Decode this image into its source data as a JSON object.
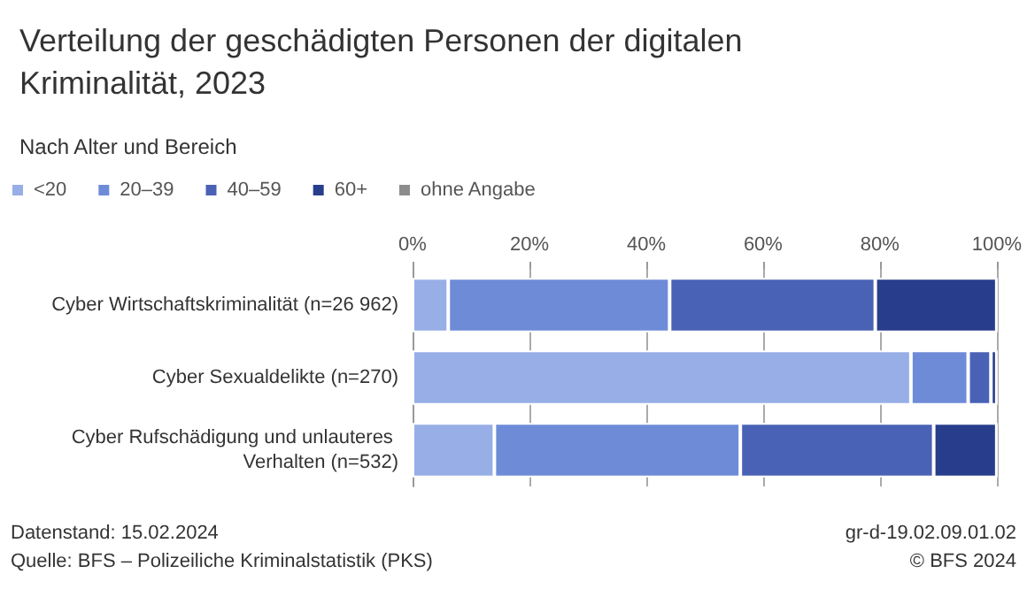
{
  "chart_data": {
    "type": "bar",
    "orientation": "horizontal",
    "stacked": true,
    "title": "Verteilung der geschädigten Personen der digitalen Kriminalität, 2023",
    "subtitle": "Nach Alter und Bereich",
    "categories": [
      "Cyber Wirtschaftskriminalität (n=26 962)",
      "Cyber Sexualdelikte (n=270)",
      "Cyber Rufschädigung und unlauteres Verhalten (n=532)"
    ],
    "series": [
      {
        "name": "<20",
        "color": "#97aee6",
        "values": [
          6.1,
          85.3,
          14.0
        ]
      },
      {
        "name": "20–39",
        "color": "#6e8bd8",
        "values": [
          37.9,
          9.8,
          42.1
        ]
      },
      {
        "name": "40–59",
        "color": "#4a62b5",
        "values": [
          35.2,
          3.9,
          33.1
        ]
      },
      {
        "name": "60+",
        "color": "#283e8c",
        "values": [
          20.8,
          1.0,
          10.8
        ]
      },
      {
        "name": "ohne Angabe",
        "color": "#8c8c8c",
        "values": [
          0,
          0,
          0
        ]
      }
    ],
    "xlim": [
      0,
      100
    ],
    "xticks": [
      {
        "value": 0,
        "label": "0%"
      },
      {
        "value": 20,
        "label": "20%"
      },
      {
        "value": 40,
        "label": "40%"
      },
      {
        "value": 60,
        "label": "60%"
      },
      {
        "value": 80,
        "label": "80%"
      },
      {
        "value": 100,
        "label": "100%"
      }
    ],
    "grid": "x",
    "legend": "top left",
    "annotations": [
      "Datenstand: 15.02.2024",
      "Quelle: BFS – Polizeiliche Kriminalstatistik (PKS)",
      "gr-d-19.02.09.01.02",
      "© BFS 2024"
    ]
  }
}
